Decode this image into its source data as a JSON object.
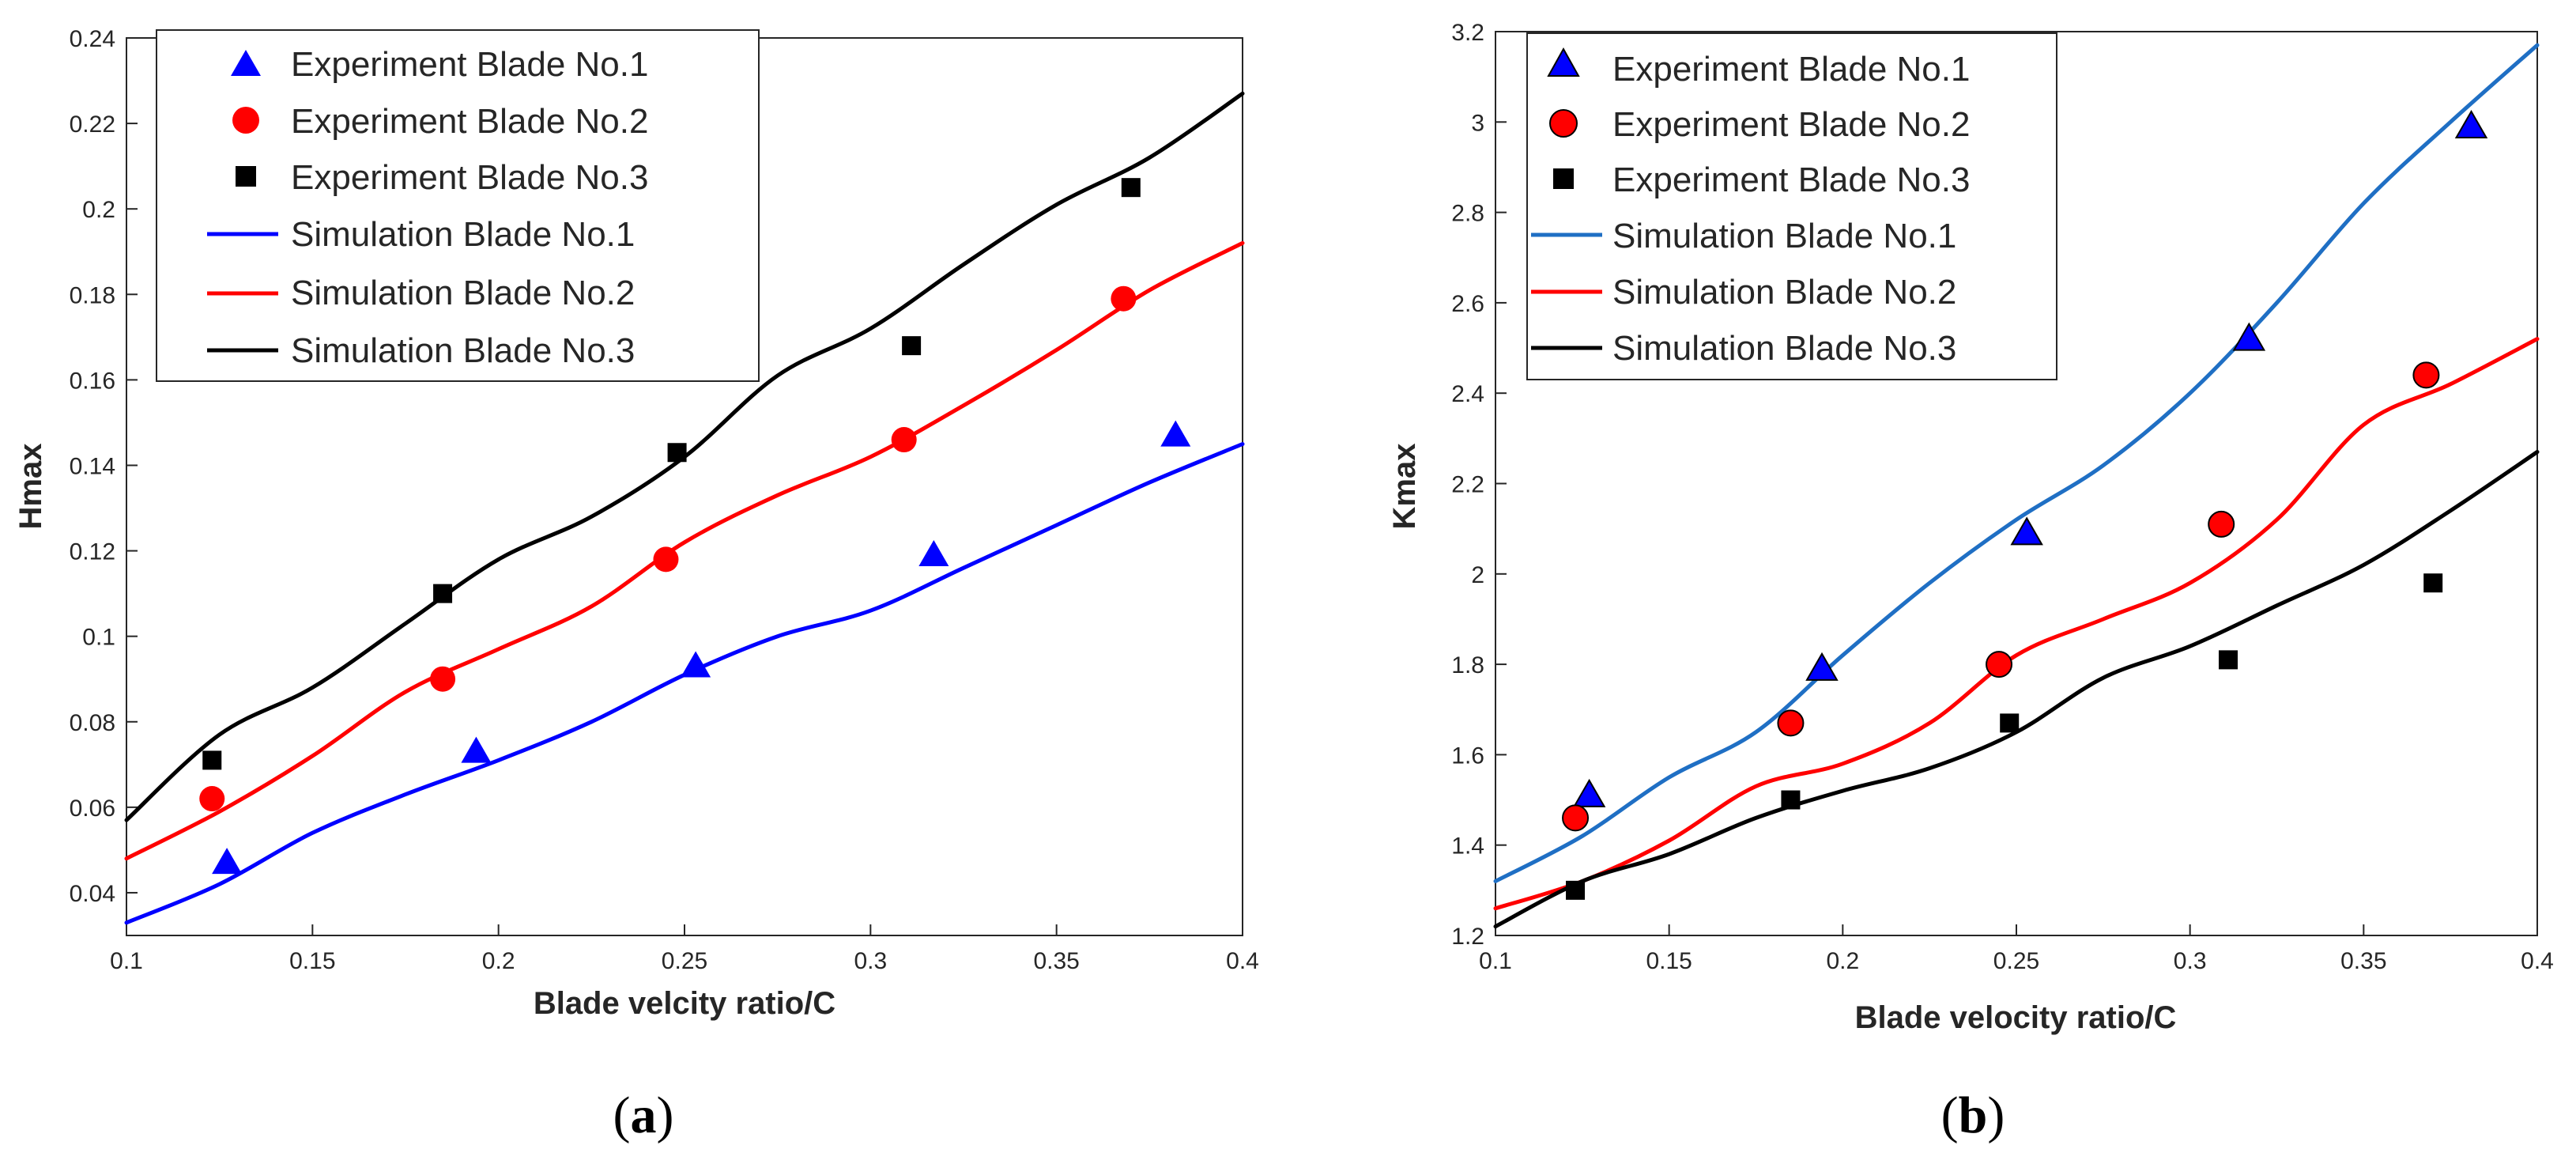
{
  "chart_data": [
    {
      "id": "a",
      "type": "line",
      "caption": "a",
      "xlabel": "Blade velcity ratio/C",
      "ylabel": "Hmax",
      "xlim": [
        0.1,
        0.4
      ],
      "ylim": [
        0.03,
        0.24
      ],
      "xticks": [
        0.1,
        0.15,
        0.2,
        0.25,
        0.3,
        0.35,
        0.4
      ],
      "xtick_labels": [
        "0.1",
        "0.15",
        "0.2",
        "0.25",
        "0.3",
        "0.35",
        "0.4"
      ],
      "yticks": [
        0.04,
        0.06,
        0.08,
        0.1,
        0.12,
        0.14,
        0.16,
        0.18,
        0.2,
        0.22,
        0.24
      ],
      "ytick_labels": [
        "0.04",
        "0.06",
        "0.08",
        "0.1",
        "0.12",
        "0.14",
        "0.16",
        "0.18",
        "0.2",
        "0.22",
        "0.24"
      ],
      "legend_position": "top-left",
      "series": [
        {
          "name": "Experiment Blade No.1",
          "kind": "scatter",
          "marker": "triangle",
          "color": "#0000ff",
          "x": [
            0.127,
            0.194,
            0.253,
            0.317,
            0.382
          ],
          "y": [
            0.047,
            0.073,
            0.093,
            0.119,
            0.147
          ]
        },
        {
          "name": "Experiment Blade No.2",
          "kind": "scatter",
          "marker": "circle",
          "color": "#ff0000",
          "x": [
            0.123,
            0.185,
            0.245,
            0.309,
            0.368
          ],
          "y": [
            0.062,
            0.09,
            0.118,
            0.146,
            0.179
          ]
        },
        {
          "name": "Experiment Blade No.3",
          "kind": "scatter",
          "marker": "square",
          "color": "#000000",
          "x": [
            0.123,
            0.185,
            0.248,
            0.311,
            0.37
          ],
          "y": [
            0.071,
            0.11,
            0.143,
            0.168,
            0.205
          ]
        },
        {
          "name": "Simulation Blade No.1",
          "kind": "line",
          "color": "#0000ff",
          "x": [
            0.1,
            0.125,
            0.15,
            0.175,
            0.2,
            0.225,
            0.25,
            0.275,
            0.3,
            0.325,
            0.35,
            0.375,
            0.4
          ],
          "y": [
            0.033,
            0.042,
            0.054,
            0.063,
            0.071,
            0.08,
            0.091,
            0.1,
            0.106,
            0.116,
            0.126,
            0.136,
            0.145
          ]
        },
        {
          "name": "Simulation Blade No.2",
          "kind": "line",
          "color": "#ff0000",
          "x": [
            0.1,
            0.125,
            0.15,
            0.175,
            0.2,
            0.225,
            0.25,
            0.275,
            0.3,
            0.325,
            0.35,
            0.375,
            0.4
          ],
          "y": [
            0.048,
            0.059,
            0.072,
            0.087,
            0.097,
            0.107,
            0.122,
            0.133,
            0.142,
            0.154,
            0.167,
            0.181,
            0.192
          ]
        },
        {
          "name": "Simulation Blade No.3",
          "kind": "line",
          "color": "#000000",
          "x": [
            0.1,
            0.125,
            0.15,
            0.175,
            0.2,
            0.225,
            0.25,
            0.275,
            0.3,
            0.325,
            0.35,
            0.375,
            0.4
          ],
          "y": [
            0.057,
            0.077,
            0.088,
            0.103,
            0.118,
            0.128,
            0.142,
            0.161,
            0.172,
            0.187,
            0.201,
            0.212,
            0.227
          ]
        }
      ]
    },
    {
      "id": "b",
      "type": "line",
      "caption": "b",
      "xlabel": "Blade velocity ratio/C",
      "ylabel": "Kmax",
      "xlim": [
        0.1,
        0.4
      ],
      "ylim": [
        1.2,
        3.2
      ],
      "xticks": [
        0.1,
        0.15,
        0.2,
        0.25,
        0.3,
        0.35,
        0.4
      ],
      "xtick_labels": [
        "0.1",
        "0.15",
        "0.2",
        "0.25",
        "0.3",
        "0.35",
        "0.4"
      ],
      "yticks": [
        1.2,
        1.4,
        1.6,
        1.8,
        2.0,
        2.2,
        2.4,
        2.6,
        2.8,
        3.0,
        3.2
      ],
      "ytick_labels": [
        "1.2",
        "1.4",
        "1.6",
        "1.8",
        "2",
        "2.2",
        "2.4",
        "2.6",
        "2.8",
        "3",
        "3.2"
      ],
      "legend_position": "top-left",
      "series": [
        {
          "name": "Experiment Blade No.1",
          "kind": "scatter",
          "marker": "triangle",
          "color": "#0000ff",
          "x": [
            0.127,
            0.194,
            0.253,
            0.317,
            0.381
          ],
          "y": [
            1.51,
            1.79,
            2.09,
            2.52,
            2.99
          ]
        },
        {
          "name": "Experiment Blade No.2",
          "kind": "scatter",
          "marker": "circle",
          "color": "#ff0000",
          "x": [
            0.123,
            0.185,
            0.245,
            0.309,
            0.368
          ],
          "y": [
            1.46,
            1.67,
            1.8,
            2.11,
            2.44
          ]
        },
        {
          "name": "Experiment Blade No.3",
          "kind": "scatter",
          "marker": "square",
          "color": "#000000",
          "x": [
            0.123,
            0.185,
            0.248,
            0.311,
            0.37
          ],
          "y": [
            1.3,
            1.5,
            1.67,
            1.81,
            1.98
          ]
        },
        {
          "name": "Simulation Blade No.1",
          "kind": "line",
          "color": "#1f6fc4",
          "x": [
            0.1,
            0.125,
            0.15,
            0.175,
            0.2,
            0.225,
            0.25,
            0.275,
            0.3,
            0.325,
            0.35,
            0.375,
            0.4
          ],
          "y": [
            1.32,
            1.42,
            1.55,
            1.65,
            1.82,
            1.98,
            2.12,
            2.24,
            2.4,
            2.6,
            2.82,
            3.0,
            3.17
          ]
        },
        {
          "name": "Simulation Blade No.2",
          "kind": "line",
          "color": "#ff0000",
          "x": [
            0.1,
            0.125,
            0.15,
            0.175,
            0.2,
            0.225,
            0.25,
            0.275,
            0.3,
            0.325,
            0.35,
            0.375,
            0.4
          ],
          "y": [
            1.26,
            1.32,
            1.41,
            1.53,
            1.58,
            1.67,
            1.82,
            1.9,
            1.98,
            2.12,
            2.33,
            2.42,
            2.52
          ]
        },
        {
          "name": "Simulation Blade No.3",
          "kind": "line",
          "color": "#000000",
          "x": [
            0.1,
            0.125,
            0.15,
            0.175,
            0.2,
            0.225,
            0.25,
            0.275,
            0.3,
            0.325,
            0.35,
            0.375,
            0.4
          ],
          "y": [
            1.22,
            1.32,
            1.38,
            1.46,
            1.52,
            1.57,
            1.65,
            1.77,
            1.84,
            1.93,
            2.02,
            2.14,
            2.27
          ]
        }
      ]
    }
  ]
}
